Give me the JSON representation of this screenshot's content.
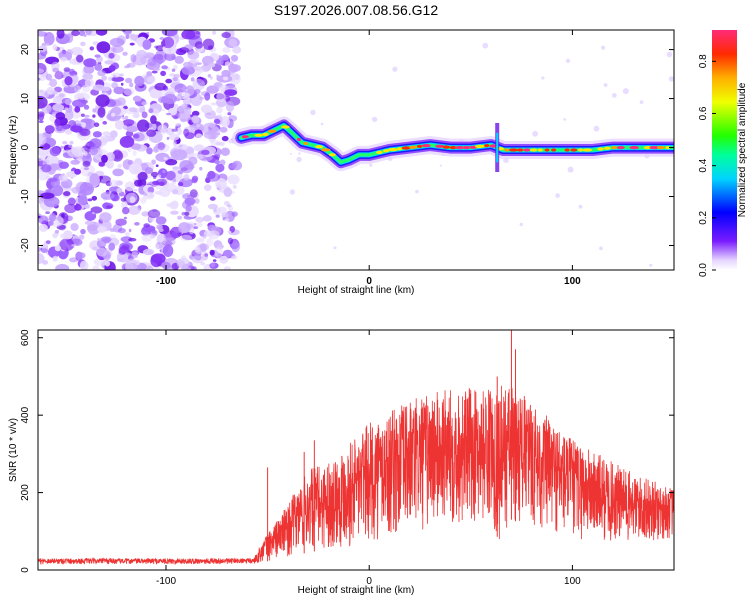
{
  "title": "S197.2026.007.08.56.G12",
  "chart_data": [
    {
      "type": "heatmap",
      "name": "spectrogram",
      "xlabel": "Height of straight line (km)",
      "ylabel": "Frequency (Hz)",
      "xlim": [
        -163,
        150
      ],
      "ylim": [
        -25,
        24
      ],
      "xticks": [
        "-100",
        "0",
        "100"
      ],
      "xtick_values": [
        -100,
        0,
        100
      ],
      "yticks": [
        "-20",
        "-10",
        "0",
        "10",
        "20"
      ],
      "ytick_values": [
        -20,
        -10,
        0,
        10,
        20
      ],
      "noise_region_end_km": -65,
      "ridge": {
        "x": [
          -63,
          -58,
          -52,
          -47,
          -42,
          -38,
          -33,
          -28,
          -23,
          -18,
          -14,
          -10,
          -5,
          0,
          10,
          20,
          30,
          40,
          50,
          60,
          63,
          66,
          70,
          80,
          90,
          100,
          110,
          120,
          130,
          140,
          150
        ],
        "freq": [
          2,
          2.5,
          2.5,
          3.5,
          4.5,
          3,
          1,
          0.5,
          0,
          -1.5,
          -3,
          -2.5,
          -1.5,
          -1.5,
          -0.5,
          0,
          0.5,
          0,
          0,
          0.5,
          0,
          -0.5,
          -0.5,
          -0.5,
          -0.5,
          -0.5,
          -0.5,
          0,
          0,
          0,
          0
        ]
      },
      "colorbar": {
        "label": "Normalized spectral amplitude",
        "ticks": [
          "0.0",
          "0.2",
          "0.4",
          "0.6",
          "0.8"
        ],
        "tick_values": [
          0,
          0.2,
          0.4,
          0.6,
          0.8
        ],
        "range": [
          0,
          0.92
        ]
      }
    },
    {
      "type": "line",
      "name": "snr",
      "xlabel": "Height of straight line (km)",
      "ylabel": "SNR (10 * v/v)",
      "xlim": [
        -163,
        150
      ],
      "ylim": [
        0,
        620
      ],
      "xticks": [
        "-100",
        "0",
        "100"
      ],
      "xtick_values": [
        -100,
        0,
        100
      ],
      "yticks": [
        "0",
        "200",
        "400",
        "600"
      ],
      "ytick_values": [
        0,
        200,
        400,
        600
      ],
      "color": "#ee3333",
      "envelope": {
        "x": [
          -163,
          -57,
          -52,
          -40,
          -30,
          -20,
          -10,
          0,
          10,
          20,
          30,
          40,
          50,
          60,
          65,
          70,
          75,
          80,
          90,
          100,
          110,
          120,
          130,
          140,
          150
        ],
        "upper": [
          30,
          30,
          80,
          170,
          260,
          280,
          330,
          380,
          410,
          440,
          460,
          470,
          470,
          470,
          480,
          480,
          460,
          430,
          390,
          340,
          310,
          280,
          250,
          230,
          210
        ],
        "lower": [
          15,
          15,
          20,
          35,
          45,
          55,
          60,
          70,
          80,
          90,
          100,
          110,
          120,
          125,
          60,
          130,
          120,
          110,
          90,
          80,
          70,
          65,
          65,
          70,
          80
        ]
      },
      "spikes": [
        {
          "x": -50,
          "y": 265
        },
        {
          "x": -32,
          "y": 305
        },
        {
          "x": -27,
          "y": 335
        },
        {
          "x": 63,
          "y": 500
        },
        {
          "x": 70,
          "y": 625
        },
        {
          "x": 72,
          "y": 570
        }
      ]
    }
  ]
}
